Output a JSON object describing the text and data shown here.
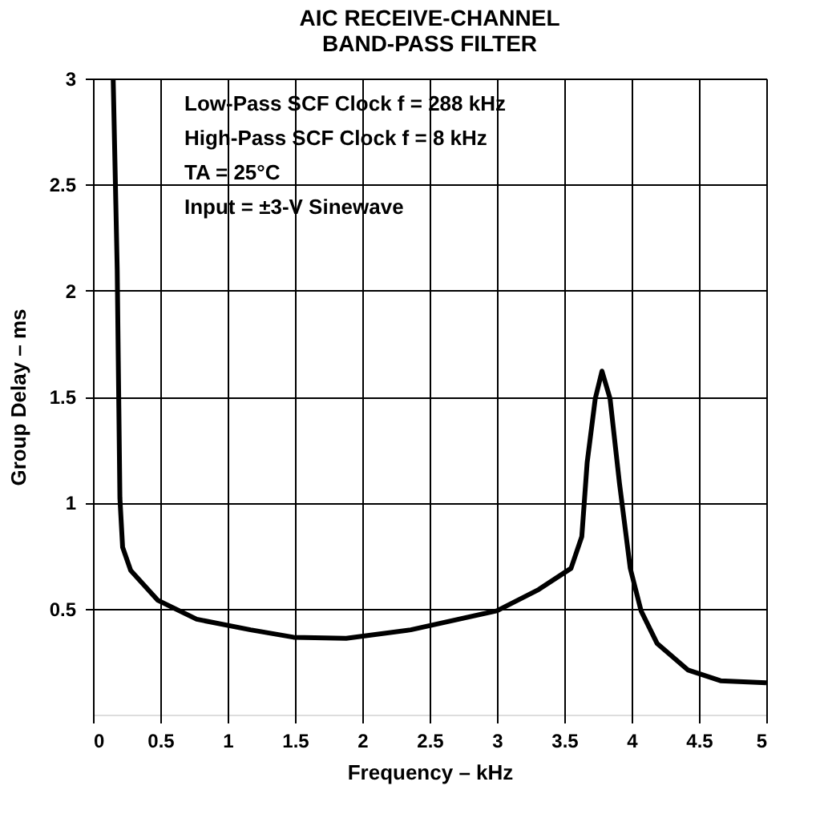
{
  "chart_data": {
    "type": "line",
    "title": "AIC RECEIVE-CHANNEL\nBAND-PASS FILTER",
    "xlabel": "Frequency – kHz",
    "ylabel": "Group Delay – ms",
    "x": [
      0.15,
      0.18,
      0.2,
      0.22,
      0.28,
      0.48,
      0.77,
      1.17,
      1.49,
      1.88,
      2.36,
      3.0,
      3.31,
      3.55,
      3.63,
      3.67,
      3.73,
      3.78,
      3.84,
      3.91,
      3.99,
      4.07,
      4.19,
      4.42,
      4.66,
      5.0
    ],
    "series": [
      {
        "color": "#000000",
        "values": [
          3.0,
          2.1,
          1.02,
          0.79,
          0.68,
          0.54,
          0.45,
          0.4,
          0.365,
          0.36,
          0.4,
          0.49,
          0.59,
          0.69,
          0.84,
          1.19,
          1.49,
          1.62,
          1.49,
          1.09,
          0.69,
          0.49,
          0.335,
          0.21,
          0.16,
          0.15
        ]
      }
    ],
    "xlim": [
      0,
      5
    ],
    "xticks": [
      0,
      0.5,
      1,
      1.5,
      2,
      2.5,
      3,
      3.5,
      4,
      4.5,
      5
    ],
    "ylim": [
      0,
      3
    ],
    "yticks": [
      0.5,
      1,
      1.5,
      2,
      2.5,
      3
    ],
    "grid": true,
    "legend": false,
    "marker": "none",
    "line_style": "solid",
    "annotations": [
      "Low-Pass SCF Clock f = 288 kHz",
      "High-Pass SCF Clock f = 8 kHz",
      "TA = 25°C",
      "Input = ±3-V Sinewave"
    ]
  }
}
